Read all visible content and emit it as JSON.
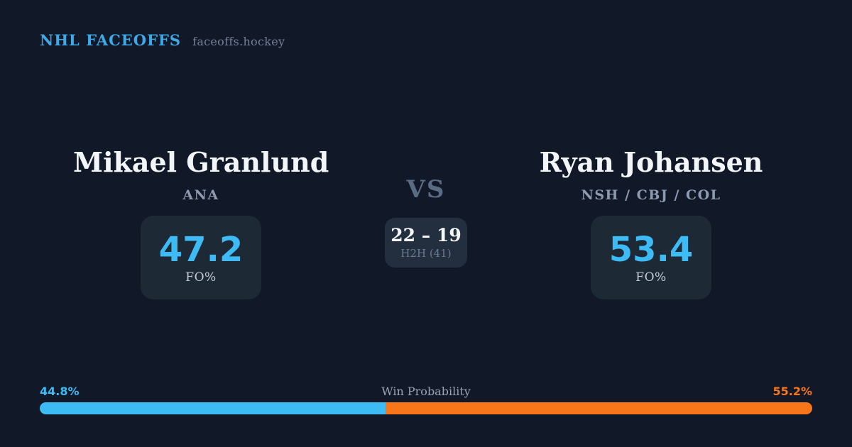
{
  "colors": {
    "background": "#111827",
    "stat_card_bg": "#1E2936",
    "h2h_card_bg": "#232E3E",
    "accent_blue": "#3CBBF5",
    "accent_orange": "#F8751A",
    "brand_blue": "#3FA9E8",
    "name_white": "#F3F6F8",
    "muted_gray": "#8C9BB1"
  },
  "header": {
    "brand": "NHL FACEOFFS",
    "site": "faceoffs.hockey"
  },
  "matchup": {
    "vs_label": "VS",
    "h2h": {
      "score": "22 – 19",
      "label": "H2H (41)"
    },
    "players": [
      {
        "name": "Mikael Granlund",
        "teams": "ANA",
        "stat_value": "47.2",
        "stat_label": "FO%"
      },
      {
        "name": "Ryan Johansen",
        "teams": "NSH / CBJ / COL",
        "stat_value": "53.4",
        "stat_label": "FO%"
      }
    ]
  },
  "win_probability": {
    "label": "Win Probability",
    "left_pct": 44.8,
    "right_pct": 55.2,
    "left_label": "44.8%",
    "right_label": "55.2%"
  },
  "chart_data": {
    "type": "bar",
    "subtype": "horizontal-stacked-probability",
    "title": "Win Probability",
    "categories": [
      "Win Probability"
    ],
    "series": [
      {
        "name": "Mikael Granlund",
        "values": [
          44.8
        ],
        "color": "#3CBBF5"
      },
      {
        "name": "Ryan Johansen",
        "values": [
          55.2
        ],
        "color": "#F8751A"
      }
    ],
    "unit": "%",
    "xlim": [
      0,
      100
    ],
    "related_stats": {
      "fo_pct": {
        "Mikael Granlund": 47.2,
        "Ryan Johansen": 53.4
      },
      "head_to_head": {
        "Mikael Granlund": 22,
        "Ryan Johansen": 19,
        "total_faceoffs": 41
      }
    }
  }
}
